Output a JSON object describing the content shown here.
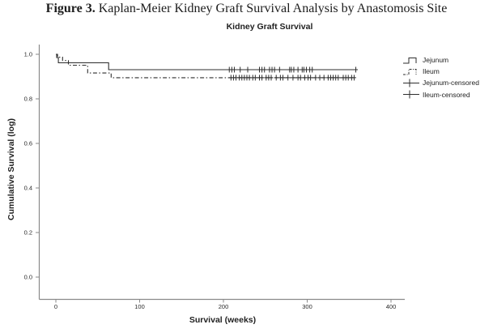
{
  "caption": {
    "label": "Figure 3.",
    "text": " Kaplan-Meier Kidney Graft Survival Analysis by Anastomosis Site"
  },
  "colors": {
    "axis": "#8a8a8a",
    "line": "#2e2e2e",
    "text": "#1f1f1f",
    "background": "#ffffff"
  },
  "chart_data": {
    "type": "line",
    "subtype": "kaplan-meier-step",
    "title": "Kidney Graft Survival",
    "xlabel": "Survival (weeks)",
    "ylabel": "Cumulative Survival (log)",
    "grid": false,
    "legend_position": "right",
    "xlim": [
      -20,
      418
    ],
    "ylim": [
      -0.1,
      1.05
    ],
    "x_ticks": [
      {
        "label": "0",
        "value": 0
      },
      {
        "label": "100",
        "value": 100
      },
      {
        "label": "200",
        "value": 200
      },
      {
        "label": "300",
        "value": 300
      },
      {
        "label": "400",
        "value": 400
      }
    ],
    "y_ticks": [
      {
        "label": "1.0",
        "value": 1.0
      },
      {
        "label": "0.8",
        "value": 0.8
      },
      {
        "label": "0.6",
        "value": 0.6
      },
      {
        "label": "0.4",
        "value": 0.4
      },
      {
        "label": "0.2",
        "value": 0.2
      },
      {
        "label": "0.0",
        "value": 0.0
      }
    ],
    "series": [
      {
        "name": "Jejunum",
        "style": "solid",
        "color": "#2e2e2e",
        "points": [
          [
            0,
            1.0
          ],
          [
            1,
            1.0
          ],
          [
            1,
            0.985
          ],
          [
            3,
            0.985
          ],
          [
            3,
            0.962
          ],
          [
            63,
            0.962
          ],
          [
            63,
            0.931
          ],
          [
            358,
            0.931
          ]
        ]
      },
      {
        "name": "Ileum",
        "style": "dash-dot",
        "color": "#2e2e2e",
        "points": [
          [
            0,
            1.0
          ],
          [
            2,
            1.0
          ],
          [
            2,
            0.987
          ],
          [
            8,
            0.987
          ],
          [
            8,
            0.972
          ],
          [
            15,
            0.972
          ],
          [
            15,
            0.951
          ],
          [
            38,
            0.951
          ],
          [
            38,
            0.916
          ],
          [
            66,
            0.916
          ],
          [
            66,
            0.895
          ],
          [
            357,
            0.895
          ]
        ]
      },
      {
        "name": "Jejunum-censored",
        "marker": "plus",
        "color": "#2e2e2e",
        "curve": "Jejunum",
        "censored_weeks": [
          207,
          210,
          213,
          220,
          229,
          243,
          246,
          249,
          255,
          258,
          261,
          267,
          279,
          281,
          284,
          289,
          294,
          296,
          299,
          303,
          306,
          358
        ]
      },
      {
        "name": "Ileum-censored",
        "marker": "plus",
        "color": "#2e2e2e",
        "curve": "Ileum",
        "censored_weeks": [
          209,
          212,
          215,
          219,
          222,
          225,
          228,
          231,
          235,
          238,
          243,
          246,
          251,
          254,
          257,
          263,
          268,
          271,
          277,
          283,
          289,
          292,
          297,
          301,
          304,
          310,
          315,
          320,
          325,
          328,
          331,
          334,
          337,
          343,
          346,
          349,
          353,
          356
        ]
      }
    ]
  }
}
